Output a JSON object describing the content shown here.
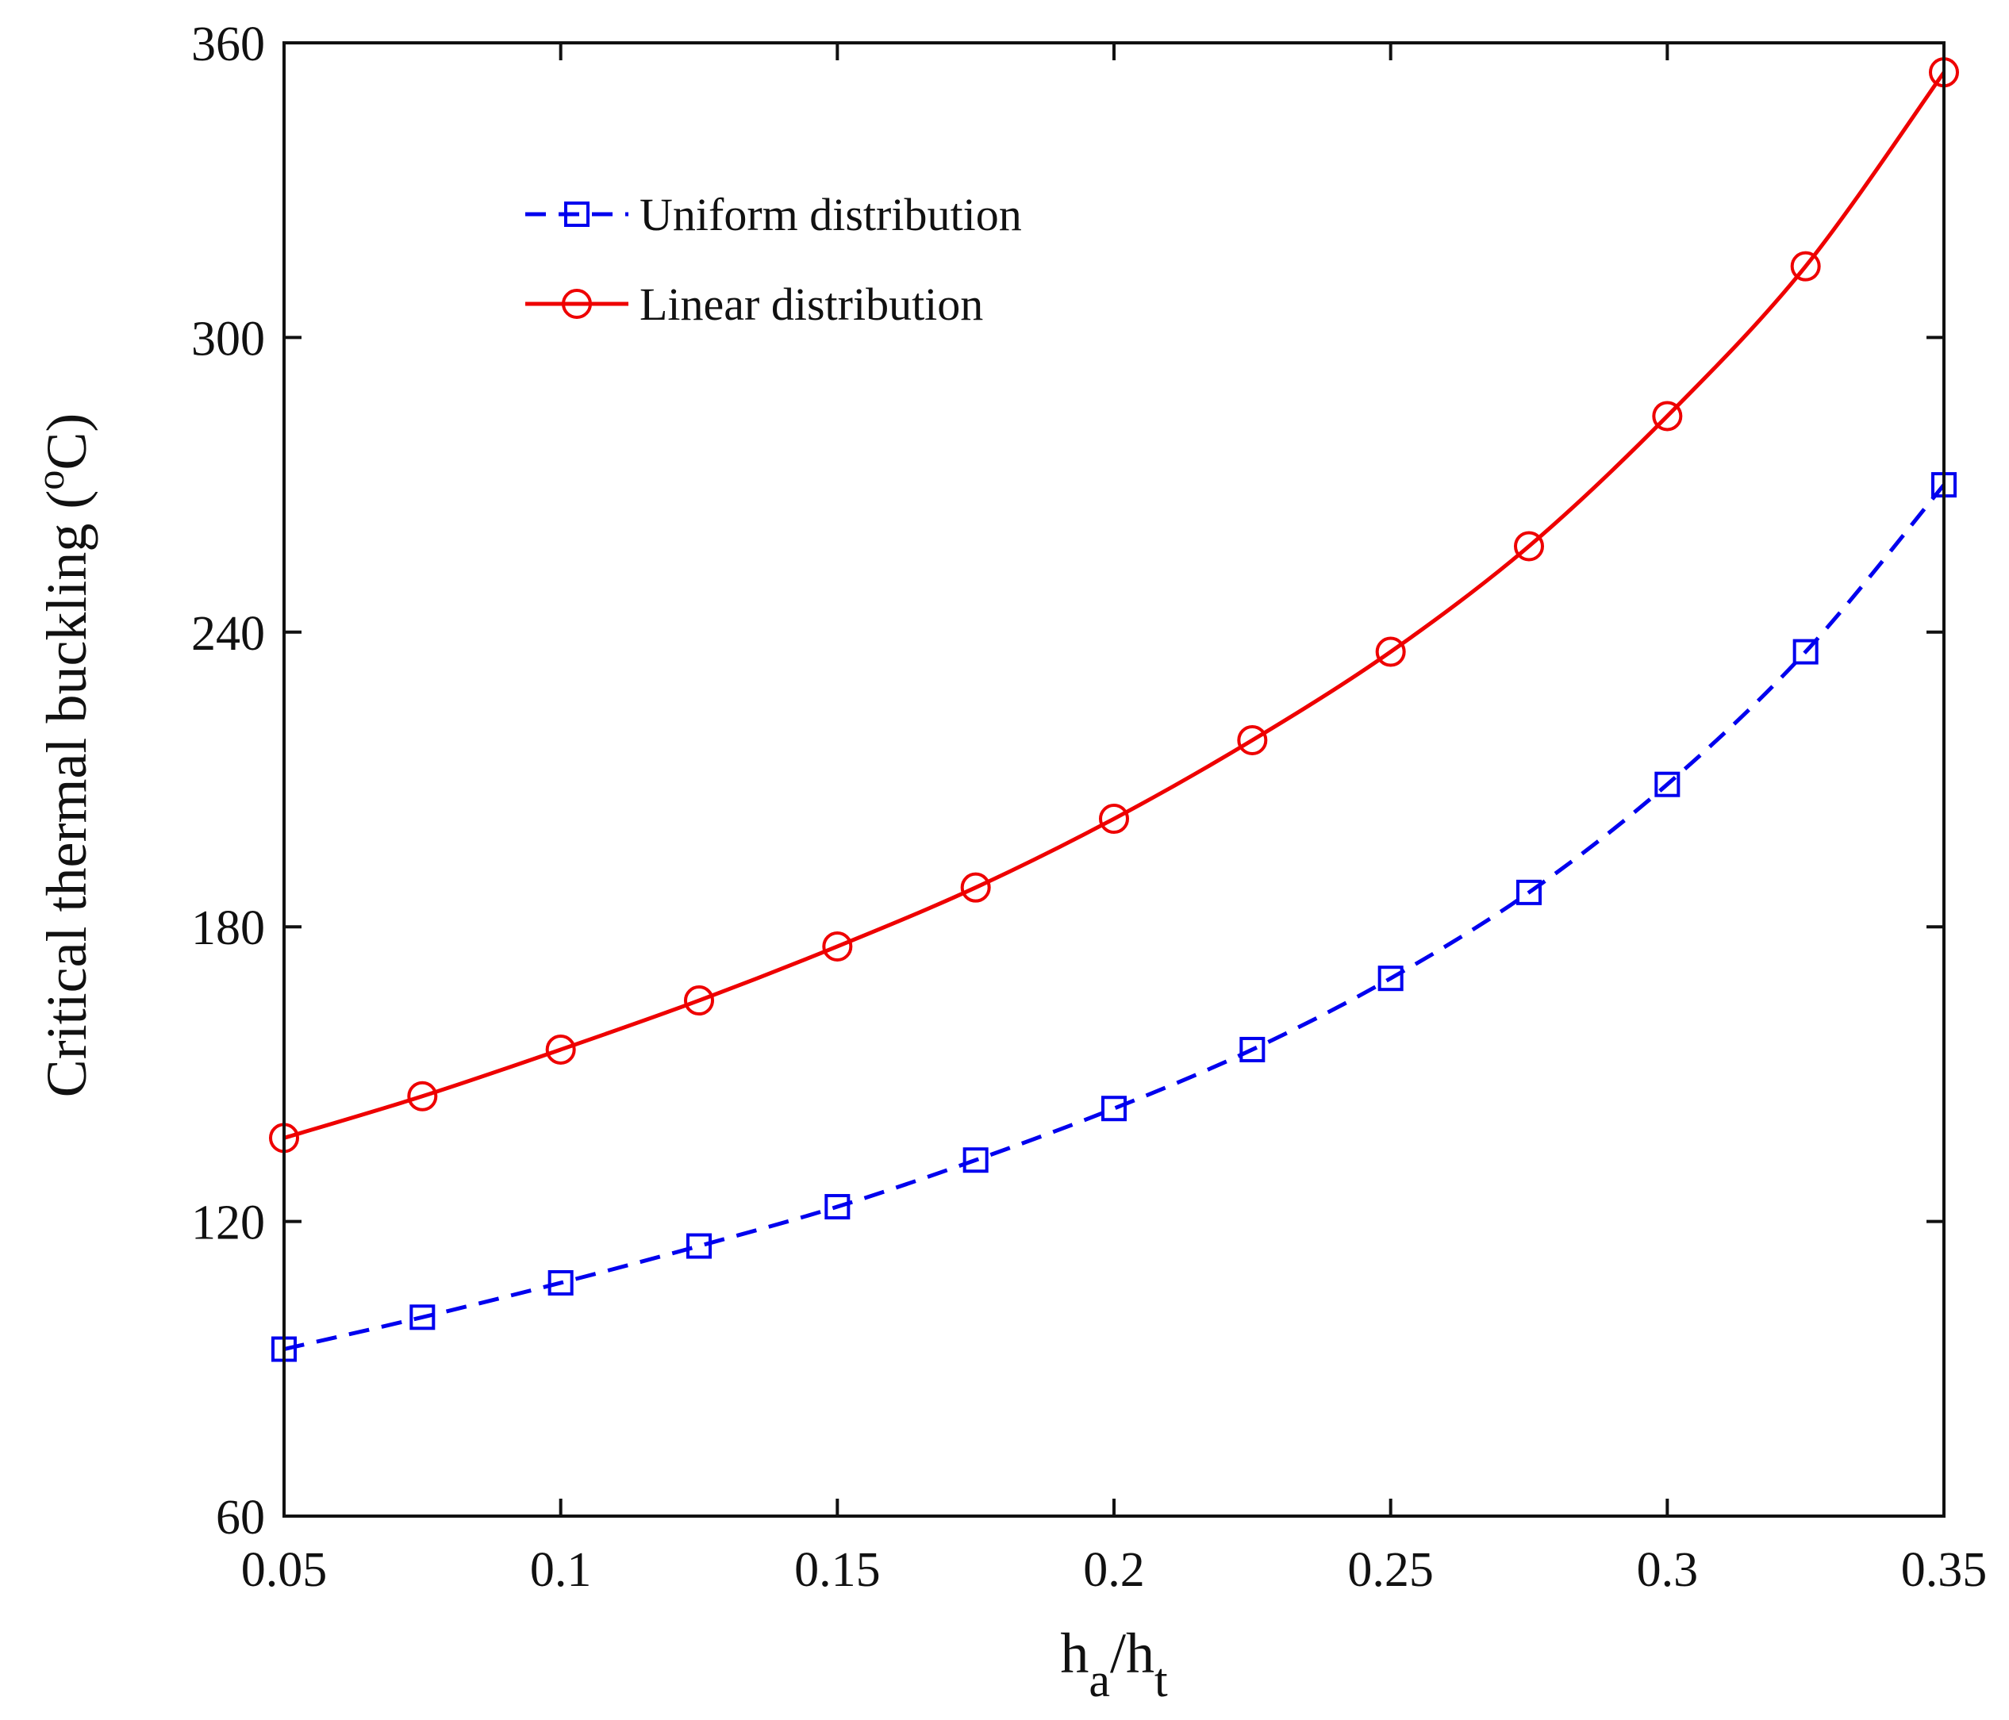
{
  "chart_data": {
    "type": "line",
    "title": "",
    "xlabel": {
      "main": "h",
      "sub1": "a",
      "sep": "/h",
      "sub2": "t"
    },
    "ylabel": {
      "main": "Critical thermal buckling (",
      "sup": "o",
      "unit": "C)"
    },
    "xlim": [
      0.05,
      0.35
    ],
    "ylim": [
      60,
      360
    ],
    "xticks": [
      0.05,
      0.1,
      0.15,
      0.2,
      0.25,
      0.3,
      0.35
    ],
    "xtick_labels": [
      "0.05",
      "0.1",
      "0.15",
      "0.2",
      "0.25",
      "0.3",
      "0.35"
    ],
    "yticks": [
      60,
      120,
      180,
      240,
      300,
      360
    ],
    "ytick_labels": [
      "60",
      "120",
      "180",
      "240",
      "300",
      "360"
    ],
    "grid": false,
    "legend_position": "upper-left",
    "x": [
      0.05,
      0.075,
      0.1,
      0.125,
      0.15,
      0.175,
      0.2,
      0.225,
      0.25,
      0.275,
      0.3,
      0.325,
      0.35
    ],
    "series": [
      {
        "name": "Uniform distribution",
        "color": "#0000ee",
        "line_style": "dashed",
        "marker": "square",
        "values": [
          94,
          100.5,
          107.5,
          115,
          123,
          132.5,
          143,
          155,
          169.5,
          187,
          209,
          236,
          270
        ]
      },
      {
        "name": "Linear distribution",
        "color": "#ee0000",
        "line_style": "solid",
        "marker": "circle",
        "values": [
          137,
          145.5,
          155,
          165,
          176,
          188,
          202,
          218,
          236,
          257.5,
          284,
          314.5,
          354
        ]
      }
    ]
  }
}
